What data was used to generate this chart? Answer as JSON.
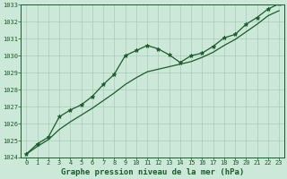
{
  "title": "Graphe pression niveau de la mer (hPa)",
  "background_color": "#cce8d8",
  "grid_color": "#a8ccb8",
  "line_color": "#1a5c2a",
  "marker_color": "#1a5c2a",
  "x_values": [
    0,
    1,
    2,
    3,
    4,
    5,
    6,
    7,
    8,
    9,
    10,
    11,
    12,
    13,
    14,
    15,
    16,
    17,
    18,
    19,
    20,
    21,
    22,
    23
  ],
  "y_main": [
    1024.2,
    1024.8,
    1025.2,
    1026.4,
    1026.8,
    1027.1,
    1027.6,
    1028.3,
    1028.9,
    1030.0,
    1030.3,
    1030.6,
    1030.4,
    1030.05,
    1029.6,
    1030.0,
    1030.15,
    1030.55,
    1031.05,
    1031.25,
    1031.85,
    1032.25,
    1032.75,
    1033.05
  ],
  "y_smooth": [
    1024.2,
    1024.65,
    1025.05,
    1025.65,
    1026.1,
    1026.5,
    1026.9,
    1027.35,
    1027.8,
    1028.3,
    1028.7,
    1029.05,
    1029.2,
    1029.35,
    1029.5,
    1029.65,
    1029.9,
    1030.2,
    1030.6,
    1030.95,
    1031.4,
    1031.85,
    1032.35,
    1032.65
  ],
  "ylim": [
    1024,
    1033
  ],
  "xlim": [
    -0.5,
    23.5
  ],
  "yticks": [
    1024,
    1025,
    1026,
    1027,
    1028,
    1029,
    1030,
    1031,
    1032,
    1033
  ],
  "xticks": [
    0,
    1,
    2,
    3,
    4,
    5,
    6,
    7,
    8,
    9,
    10,
    11,
    12,
    13,
    14,
    15,
    16,
    17,
    18,
    19,
    20,
    21,
    22,
    23
  ],
  "title_fontsize": 6.5,
  "tick_fontsize": 5.0,
  "marker": "*"
}
